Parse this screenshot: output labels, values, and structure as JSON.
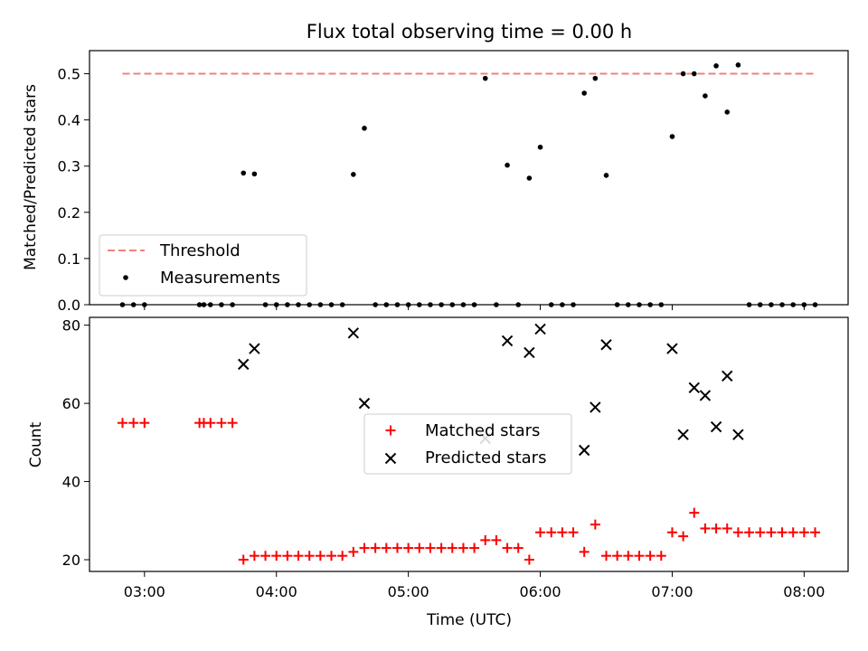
{
  "chart_data": [
    {
      "type": "scatter",
      "title": "Flux total observing time = 0.00 h",
      "xlabel": "",
      "ylabel": "Matched/Predicted stars",
      "xlim": [
        "02:35",
        "08:20"
      ],
      "ylim": [
        0,
        0.55
      ],
      "yticks": [
        "0.0",
        "0.1",
        "0.2",
        "0.3",
        "0.4",
        "0.5"
      ],
      "legend_position": "lower-left",
      "threshold": {
        "name": "Threshold",
        "value": 0.5,
        "x_start": "02:50",
        "x_end": "08:05",
        "color": "#f08080",
        "style": "dashed"
      },
      "series": [
        {
          "name": "Measurements",
          "color": "#000000",
          "marker": "dot",
          "points": [
            [
              "02:50",
              0
            ],
            [
              "02:55",
              0
            ],
            [
              "03:00",
              0
            ],
            [
              "03:25",
              0
            ],
            [
              "03:27",
              0
            ],
            [
              "03:30",
              0
            ],
            [
              "03:35",
              0
            ],
            [
              "03:40",
              0
            ],
            [
              "03:45",
              0.285
            ],
            [
              "03:50",
              0.283
            ],
            [
              "03:55",
              0
            ],
            [
              "04:00",
              0
            ],
            [
              "04:05",
              0
            ],
            [
              "04:10",
              0
            ],
            [
              "04:15",
              0
            ],
            [
              "04:20",
              0
            ],
            [
              "04:25",
              0
            ],
            [
              "04:30",
              0
            ],
            [
              "04:35",
              0.282
            ],
            [
              "04:40",
              0.382
            ],
            [
              "04:45",
              0
            ],
            [
              "04:50",
              0
            ],
            [
              "04:55",
              0
            ],
            [
              "05:00",
              0
            ],
            [
              "05:05",
              0
            ],
            [
              "05:10",
              0
            ],
            [
              "05:15",
              0
            ],
            [
              "05:20",
              0
            ],
            [
              "05:25",
              0
            ],
            [
              "05:30",
              0
            ],
            [
              "05:35",
              0.49
            ],
            [
              "05:40",
              0
            ],
            [
              "05:45",
              0.302
            ],
            [
              "05:50",
              0
            ],
            [
              "05:55",
              0.274
            ],
            [
              "06:00",
              0.341
            ],
            [
              "06:05",
              0
            ],
            [
              "06:10",
              0
            ],
            [
              "06:15",
              0
            ],
            [
              "06:20",
              0.458
            ],
            [
              "06:25",
              0.49
            ],
            [
              "06:30",
              0.28
            ],
            [
              "06:35",
              0
            ],
            [
              "06:40",
              0
            ],
            [
              "06:45",
              0
            ],
            [
              "06:50",
              0
            ],
            [
              "06:55",
              0
            ],
            [
              "07:00",
              0.364
            ],
            [
              "07:05",
              0.5
            ],
            [
              "07:10",
              0.5
            ],
            [
              "07:15",
              0.452
            ],
            [
              "07:20",
              0.517
            ],
            [
              "07:25",
              0.417
            ],
            [
              "07:30",
              0.519
            ],
            [
              "07:35",
              0
            ],
            [
              "07:40",
              0
            ],
            [
              "07:45",
              0
            ],
            [
              "07:50",
              0
            ],
            [
              "07:55",
              0
            ],
            [
              "08:00",
              0
            ],
            [
              "08:05",
              0
            ]
          ]
        }
      ]
    },
    {
      "type": "scatter",
      "title": "",
      "xlabel": "Time (UTC)",
      "ylabel": "Count",
      "xlim": [
        "02:35",
        "08:20"
      ],
      "ylim": [
        17,
        82
      ],
      "yticks": [
        "20",
        "40",
        "60",
        "80"
      ],
      "xticks": [
        "03:00",
        "04:00",
        "05:00",
        "06:00",
        "07:00",
        "08:00"
      ],
      "legend_position": "center",
      "series": [
        {
          "name": "Matched stars",
          "color": "#ff0000",
          "marker": "plus",
          "points": [
            [
              "02:50",
              55
            ],
            [
              "02:55",
              55
            ],
            [
              "03:00",
              55
            ],
            [
              "03:25",
              55
            ],
            [
              "03:27",
              55
            ],
            [
              "03:30",
              55
            ],
            [
              "03:35",
              55
            ],
            [
              "03:40",
              55
            ],
            [
              "03:45",
              20
            ],
            [
              "03:50",
              21
            ],
            [
              "03:55",
              21
            ],
            [
              "04:00",
              21
            ],
            [
              "04:05",
              21
            ],
            [
              "04:10",
              21
            ],
            [
              "04:15",
              21
            ],
            [
              "04:20",
              21
            ],
            [
              "04:25",
              21
            ],
            [
              "04:30",
              21
            ],
            [
              "04:35",
              22
            ],
            [
              "04:40",
              23
            ],
            [
              "04:45",
              23
            ],
            [
              "04:50",
              23
            ],
            [
              "04:55",
              23
            ],
            [
              "05:00",
              23
            ],
            [
              "05:05",
              23
            ],
            [
              "05:10",
              23
            ],
            [
              "05:15",
              23
            ],
            [
              "05:20",
              23
            ],
            [
              "05:25",
              23
            ],
            [
              "05:30",
              23
            ],
            [
              "05:35",
              25
            ],
            [
              "05:40",
              25
            ],
            [
              "05:45",
              23
            ],
            [
              "05:50",
              23
            ],
            [
              "05:55",
              20
            ],
            [
              "06:00",
              27
            ],
            [
              "06:05",
              27
            ],
            [
              "06:10",
              27
            ],
            [
              "06:15",
              27
            ],
            [
              "06:20",
              22
            ],
            [
              "06:25",
              29
            ],
            [
              "06:30",
              21
            ],
            [
              "06:35",
              21
            ],
            [
              "06:40",
              21
            ],
            [
              "06:45",
              21
            ],
            [
              "06:50",
              21
            ],
            [
              "06:55",
              21
            ],
            [
              "07:00",
              27
            ],
            [
              "07:05",
              26
            ],
            [
              "07:10",
              32
            ],
            [
              "07:15",
              28
            ],
            [
              "07:20",
              28
            ],
            [
              "07:25",
              28
            ],
            [
              "07:30",
              27
            ],
            [
              "07:35",
              27
            ],
            [
              "07:40",
              27
            ],
            [
              "07:45",
              27
            ],
            [
              "07:50",
              27
            ],
            [
              "07:55",
              27
            ],
            [
              "08:00",
              27
            ],
            [
              "08:05",
              27
            ]
          ]
        },
        {
          "name": "Predicted stars",
          "color": "#000000",
          "marker": "x",
          "points": [
            [
              "03:45",
              70
            ],
            [
              "03:50",
              74
            ],
            [
              "04:35",
              78
            ],
            [
              "04:40",
              60
            ],
            [
              "05:35",
              51
            ],
            [
              "05:45",
              76
            ],
            [
              "05:55",
              73
            ],
            [
              "06:00",
              79
            ],
            [
              "06:20",
              48
            ],
            [
              "06:25",
              59
            ],
            [
              "06:30",
              75
            ],
            [
              "07:00",
              74
            ],
            [
              "07:05",
              52
            ],
            [
              "07:10",
              64
            ],
            [
              "07:15",
              62
            ],
            [
              "07:20",
              54
            ],
            [
              "07:25",
              67
            ],
            [
              "07:30",
              52
            ]
          ]
        }
      ]
    }
  ]
}
